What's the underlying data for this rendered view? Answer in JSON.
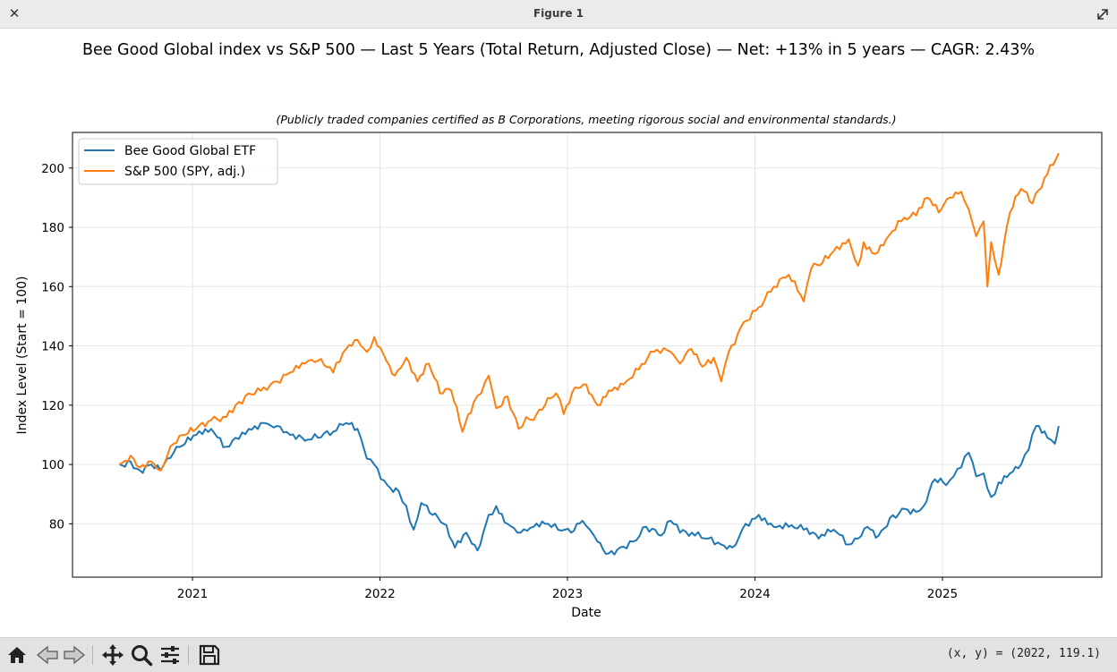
{
  "window": {
    "title": "Figure 1",
    "close_icon": "close-icon",
    "expand_icon": "expand-icon"
  },
  "toolbar": {
    "icons": [
      "home-icon",
      "back-arrow-icon",
      "forward-arrow-icon",
      "pan-move-icon",
      "zoom-magnifier-icon",
      "configure-subplots-icon",
      "save-floppy-icon"
    ],
    "coords_text": "(x, y) = (2022, 119.1)"
  },
  "chart_data": {
    "type": "line",
    "title": "Bee Good Global index vs S&P 500 — Last 5 Years (Total Return, Adjusted Close) — Net: +13% in 5 years — CAGR: 2.43%",
    "subtitle": "(Publicly traded companies certified as B Corporations, meeting rigorous social and environmental standards.)",
    "xlabel": "Date",
    "ylabel": "Index Level (Start = 100)",
    "xlim": [
      2020.36,
      2025.85
    ],
    "ylim": [
      62,
      212
    ],
    "xticks": [
      2021,
      2022,
      2023,
      2024,
      2025
    ],
    "xtick_labels": [
      "2021",
      "2022",
      "2023",
      "2024",
      "2025"
    ],
    "yticks": [
      80,
      100,
      120,
      140,
      160,
      180,
      200
    ],
    "ytick_labels": [
      "80",
      "100",
      "120",
      "140",
      "160",
      "180",
      "200"
    ],
    "grid": true,
    "legend_position": "upper-left",
    "series": [
      {
        "name": "Bee Good Global ETF",
        "color": "#1f77b4",
        "x": [
          2020.61,
          2020.67,
          2020.72,
          2020.78,
          2020.83,
          2020.9,
          2020.96,
          2021.02,
          2021.1,
          2021.18,
          2021.23,
          2021.3,
          2021.38,
          2021.45,
          2021.52,
          2021.6,
          2021.67,
          2021.75,
          2021.82,
          2021.88,
          2021.93,
          2021.97,
          2022.04,
          2022.1,
          2022.14,
          2022.18,
          2022.22,
          2022.28,
          2022.34,
          2022.4,
          2022.46,
          2022.52,
          2022.58,
          2022.62,
          2022.68,
          2022.75,
          2022.82,
          2022.88,
          2022.95,
          2023.02,
          2023.08,
          2023.12,
          2023.16,
          2023.22,
          2023.28,
          2023.35,
          2023.42,
          2023.5,
          2023.55,
          2023.6,
          2023.68,
          2023.75,
          2023.82,
          2023.88,
          2023.95,
          2024.02,
          2024.1,
          2024.18,
          2024.26,
          2024.34,
          2024.42,
          2024.5,
          2024.55,
          2024.6,
          2024.66,
          2024.72,
          2024.8,
          2024.86,
          2024.9,
          2024.96,
          2025.02,
          2025.06,
          2025.1,
          2025.14,
          2025.18,
          2025.22,
          2025.26,
          2025.3,
          2025.36,
          2025.42,
          2025.46,
          2025.5,
          2025.56,
          2025.6,
          2025.62
        ],
        "values": [
          100,
          101,
          98,
          100,
          98,
          104,
          107,
          110,
          112,
          106,
          109,
          112,
          114,
          113,
          110,
          108,
          109,
          111,
          114,
          112,
          102,
          100,
          93,
          91,
          86,
          78,
          87,
          83,
          80,
          72,
          77,
          71,
          83,
          86,
          80,
          77,
          79,
          80,
          78,
          77,
          81,
          78,
          74,
          70,
          72,
          74,
          79,
          76,
          81,
          77,
          76,
          75,
          73,
          72,
          80,
          83,
          79,
          79,
          78,
          75,
          78,
          73,
          75,
          79,
          76,
          82,
          85,
          84,
          86,
          95,
          93,
          96,
          99,
          104,
          96,
          97,
          89,
          94,
          97,
          100,
          105,
          113,
          109,
          107,
          113
        ]
      },
      {
        "name": "S&P 500 (SPY, adj.)",
        "color": "#ff7f0e",
        "x": [
          2020.61,
          2020.67,
          2020.72,
          2020.78,
          2020.83,
          2020.9,
          2020.96,
          2021.02,
          2021.1,
          2021.18,
          2021.23,
          2021.3,
          2021.38,
          2021.45,
          2021.52,
          2021.6,
          2021.67,
          2021.75,
          2021.82,
          2021.88,
          2021.93,
          2021.97,
          2022.02,
          2022.08,
          2022.14,
          2022.2,
          2022.26,
          2022.32,
          2022.38,
          2022.44,
          2022.5,
          2022.54,
          2022.58,
          2022.62,
          2022.68,
          2022.74,
          2022.78,
          2022.82,
          2022.88,
          2022.94,
          2022.98,
          2023.04,
          2023.1,
          2023.16,
          2023.22,
          2023.3,
          2023.38,
          2023.46,
          2023.55,
          2023.6,
          2023.66,
          2023.72,
          2023.78,
          2023.82,
          2023.86,
          2023.94,
          2024.02,
          2024.1,
          2024.18,
          2024.26,
          2024.3,
          2024.36,
          2024.42,
          2024.5,
          2024.55,
          2024.58,
          2024.64,
          2024.7,
          2024.78,
          2024.86,
          2024.92,
          2024.98,
          2025.04,
          2025.1,
          2025.14,
          2025.18,
          2025.22,
          2025.24,
          2025.26,
          2025.3,
          2025.36,
          2025.42,
          2025.48,
          2025.56,
          2025.62
        ],
        "values": [
          100,
          103,
          99,
          101,
          98,
          107,
          110,
          112,
          115,
          116,
          120,
          124,
          126,
          128,
          131,
          134,
          135,
          131,
          139,
          142,
          138,
          143,
          137,
          130,
          136,
          128,
          134,
          124,
          125,
          111,
          121,
          124,
          130,
          119,
          123,
          112,
          116,
          115,
          120,
          124,
          117,
          126,
          127,
          120,
          125,
          127,
          132,
          138,
          138,
          134,
          139,
          133,
          136,
          128,
          138,
          148,
          153,
          160,
          164,
          155,
          166,
          168,
          172,
          176,
          167,
          175,
          171,
          176,
          182,
          184,
          190,
          185,
          190,
          192,
          186,
          177,
          182,
          160,
          175,
          164,
          185,
          193,
          188,
          198,
          205
        ]
      }
    ]
  }
}
